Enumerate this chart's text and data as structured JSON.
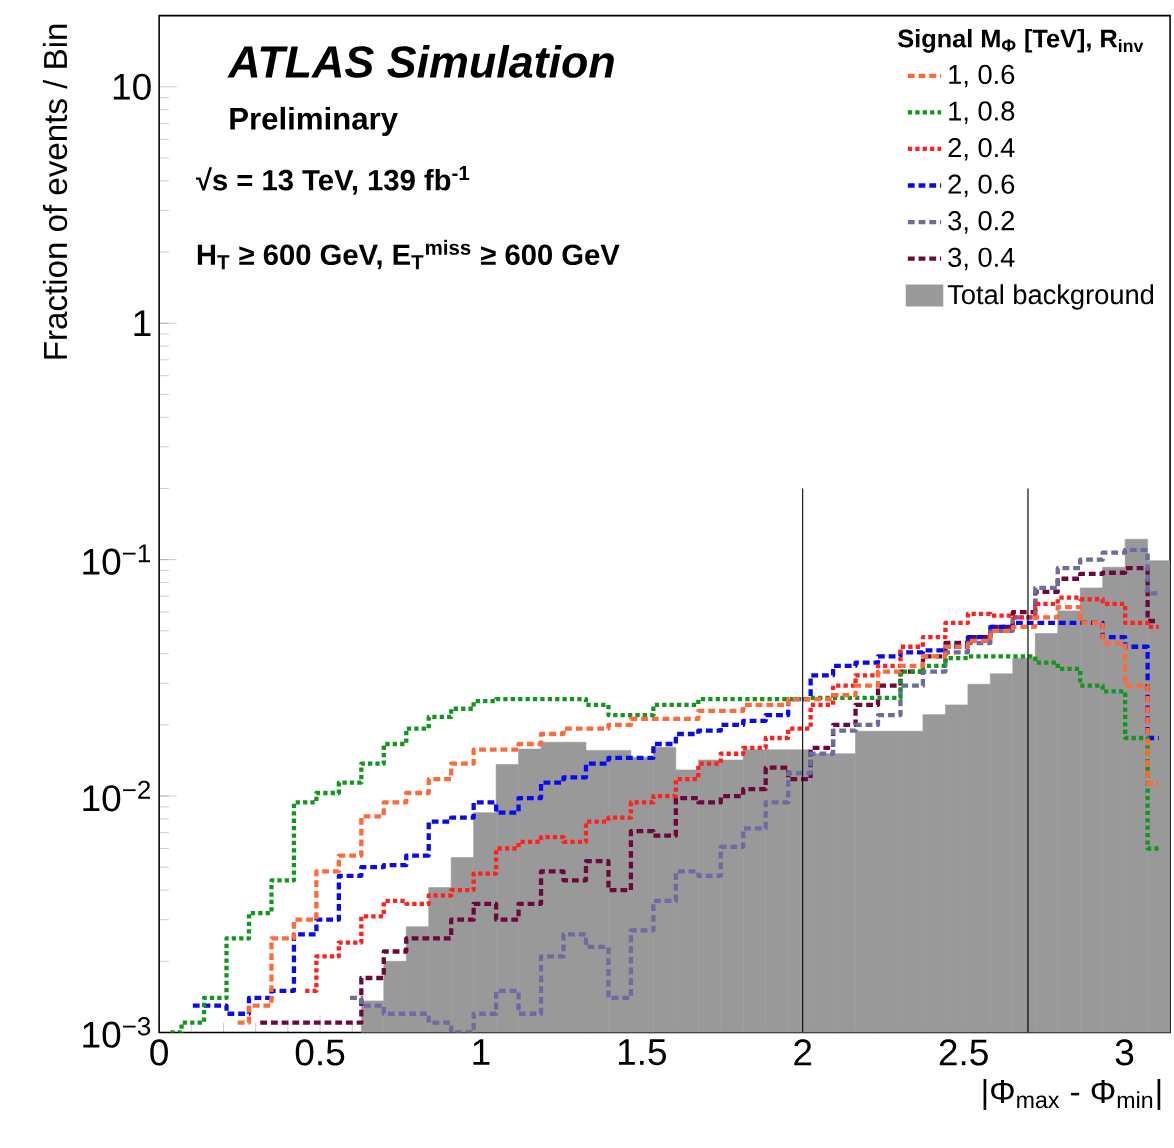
{
  "chart_data": {
    "type": "histogram",
    "xlabel": "|Φ$_{max}$ - Φ$_{min}$|",
    "ylabel": "Fraction of events / Bin",
    "legend_title": "Signal M$_{Φ}$ [TeV], R$_{inv}$",
    "annotations": [
      "ATLAS Simulation",
      "Preliminary",
      "√s = 13 TeV, 139 fb$^{-1}$",
      "H$_{T}$ ≥ 600 GeV, E$_{T}$$^{miss}$ ≥ 600 GeV"
    ],
    "bins": [
      0,
      0.0698,
      0.1396,
      0.2094,
      0.2793,
      0.3491,
      0.4189,
      0.4887,
      0.5585,
      0.6283,
      0.6981,
      0.7679,
      0.8378,
      0.9076,
      0.9774,
      1.0472,
      1.117,
      1.1868,
      1.2566,
      1.3265,
      1.3963,
      1.4661,
      1.5359,
      1.6057,
      1.6755,
      1.7453,
      1.8151,
      1.885,
      1.9548,
      2.0246,
      2.0944,
      2.1642,
      2.234,
      2.3038,
      2.3736,
      2.4435,
      2.5133,
      2.5831,
      2.6529,
      2.7227,
      2.7925,
      2.8623,
      2.9322,
      3.002,
      3.0718,
      3.1416
    ],
    "x": [
      0.0349,
      0.1047,
      0.1745,
      0.2443,
      0.3142,
      0.384,
      0.4538,
      0.5236,
      0.5934,
      0.6632,
      0.733,
      0.8029,
      0.8727,
      0.9425,
      1.0123,
      1.0821,
      1.1519,
      1.2217,
      1.2915,
      1.3614,
      1.4312,
      1.501,
      1.5708,
      1.6406,
      1.7104,
      1.7802,
      1.85,
      1.9199,
      1.9897,
      2.0595,
      2.1293,
      2.1991,
      2.2689,
      2.3387,
      2.4086,
      2.4784,
      2.5482,
      2.618,
      2.6878,
      2.7576,
      2.8274,
      2.8972,
      2.9671,
      3.0369,
      3.1067
    ],
    "series": [
      {
        "name": "Total background",
        "color": "#999999",
        "values": [
          null,
          null,
          null,
          null,
          null,
          null,
          null,
          null,
          null,
          0.00136,
          0.002,
          0.0028,
          0.0041,
          0.0055,
          0.0085,
          0.0136,
          0.0158,
          0.0169,
          0.0169,
          0.0156,
          0.0156,
          0.0146,
          0.0161,
          0.0129,
          0.0142,
          0.0142,
          0.0157,
          0.0157,
          0.0157,
          0.0151,
          0.0151,
          0.0188,
          0.0188,
          0.0188,
          0.0221,
          0.0243,
          0.0297,
          0.0329,
          0.0383,
          0.0487,
          0.0607,
          0.0759,
          0.0929,
          0.122,
          0.0989
        ]
      },
      {
        "name": "1, 0.6",
        "type": "step",
        "line_style": "dashed",
        "color": "#ff6a3a",
        "values": [
          null,
          null,
          null,
          0.0011,
          0.0013,
          0.0025,
          0.003,
          0.0048,
          0.0056,
          0.0082,
          0.0094,
          0.0103,
          0.0118,
          0.0137,
          0.0157,
          0.0157,
          0.0166,
          0.0183,
          0.0193,
          0.0193,
          0.02,
          0.0212,
          0.0212,
          0.0212,
          0.0229,
          0.0229,
          0.0243,
          0.0243,
          0.0257,
          0.0257,
          0.0267,
          0.0293,
          0.0336,
          0.0355,
          0.039,
          0.0428,
          0.0453,
          0.05,
          0.052,
          0.057,
          0.063,
          0.054,
          0.0444,
          0.0293,
          0.0113
        ]
      },
      {
        "name": "1, 0.8",
        "type": "step",
        "line_style": "dotted",
        "color": "#14961e",
        "values": [
          0.001,
          0.0011,
          0.0014,
          0.0025,
          0.0032,
          0.0044,
          0.0094,
          0.0103,
          0.0114,
          0.0137,
          0.0166,
          0.0193,
          0.0216,
          0.0234,
          0.0252,
          0.0257,
          0.0257,
          0.0257,
          0.0257,
          0.0243,
          0.022,
          0.022,
          0.0243,
          0.0243,
          0.0257,
          0.0257,
          0.0257,
          0.0257,
          0.0257,
          0.026,
          0.026,
          0.026,
          0.026,
          0.0336,
          0.0355,
          0.0383,
          0.039,
          0.039,
          0.039,
          0.0367,
          0.0345,
          0.0293,
          0.0277,
          0.0176,
          0.006
        ]
      },
      {
        "name": "2, 0.4",
        "type": "step",
        "line_style": "dotted",
        "color": "#ff2020",
        "values": [
          null,
          null,
          null,
          null,
          null,
          null,
          0.0015,
          0.0021,
          0.0024,
          0.0031,
          0.0036,
          0.0035,
          0.0038,
          0.004,
          0.0047,
          0.006,
          0.0064,
          0.0067,
          0.0064,
          0.0078,
          0.0081,
          0.0094,
          0.01,
          0.0118,
          0.0137,
          0.0151,
          0.016,
          0.0176,
          0.0193,
          0.0243,
          0.0293,
          0.0324,
          0.0355,
          0.0428,
          0.047,
          0.054,
          0.059,
          0.058,
          0.057,
          0.065,
          0.069,
          0.068,
          0.065,
          0.054,
          0.052
        ]
      },
      {
        "name": "2, 0.6",
        "type": "step",
        "line_style": "dashed",
        "color": "#0a0aee",
        "values": [
          null,
          0.0013,
          0.0013,
          0.0012,
          0.0014,
          0.0015,
          0.0026,
          0.003,
          0.0046,
          0.005,
          0.0051,
          0.0056,
          0.0078,
          0.0081,
          0.0094,
          0.0085,
          0.0098,
          0.0114,
          0.012,
          0.0137,
          0.0145,
          0.0145,
          0.0166,
          0.0183,
          0.0189,
          0.02,
          0.0208,
          0.022,
          0.0257,
          0.0324,
          0.0355,
          0.0367,
          0.039,
          0.0405,
          0.0413,
          0.0428,
          0.047,
          0.052,
          0.054,
          0.054,
          0.054,
          0.054,
          0.047,
          0.0428,
          0.0176
        ]
      },
      {
        "name": "3, 0.2",
        "type": "step",
        "line_style": "dashed",
        "color": "#6c6c9e",
        "values": [
          null,
          null,
          null,
          null,
          null,
          null,
          null,
          null,
          0.0014,
          0.0013,
          0.0012,
          0.0012,
          0.0011,
          0.001,
          0.0012,
          0.0015,
          0.0012,
          0.0021,
          0.0026,
          0.0023,
          0.0014,
          0.0027,
          0.0036,
          0.0048,
          0.0046,
          0.0061,
          0.0073,
          0.0094,
          0.0125,
          0.0151,
          0.0189,
          0.02,
          0.022,
          0.0293,
          0.0336,
          0.0405,
          0.0444,
          0.05,
          0.057,
          0.076,
          0.092,
          0.1,
          0.107,
          0.11,
          0.072
        ]
      },
      {
        "name": "3, 0.4",
        "type": "step",
        "line_style": "dashed",
        "color": "#6a0a3c",
        "values": [
          null,
          null,
          null,
          null,
          0.0011,
          0.0011,
          0.0011,
          0.0011,
          0.0011,
          0.0017,
          0.0022,
          0.0025,
          0.0025,
          0.003,
          0.0035,
          0.003,
          0.0035,
          0.0048,
          0.0044,
          0.0053,
          0.004,
          0.0071,
          0.0068,
          0.0098,
          0.0094,
          0.01,
          0.0107,
          0.0132,
          0.0118,
          0.016,
          0.02,
          0.0243,
          0.0293,
          0.0336,
          0.039,
          0.0444,
          0.047,
          0.052,
          0.06,
          0.073,
          0.083,
          0.087,
          0.088,
          0.092,
          0.055
        ]
      }
    ],
    "xlim": [
      0,
      3.1416
    ],
    "ylim": [
      0.001,
      20
    ],
    "xticks": [
      0,
      0.5,
      1,
      1.5,
      2,
      2.5,
      3
    ],
    "yticks": [
      {
        "value": 0.001,
        "label": "10$^{−3}$"
      },
      {
        "value": 0.01,
        "label": "10$^{−2}$"
      },
      {
        "value": 0.1,
        "label": "10$^{−1}$"
      },
      1,
      10
    ],
    "log": "y",
    "legend": "top right",
    "ref_lines": [
      {
        "axis": "x",
        "value": 2
      },
      {
        "axis": "x",
        "value": 2.7
      }
    ]
  }
}
